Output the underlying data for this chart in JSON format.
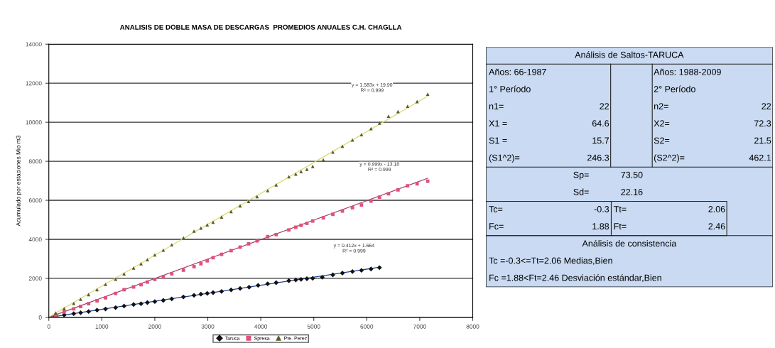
{
  "chart_data": [
    {
      "type": "scatter",
      "title": "ANALISIS DE DOBLE MASA DE DESCARGAS  PROMEDIOS ANUALES C.H. CHAGLLA",
      "ylabel": "Acumulado por estaciones Mio m3",
      "xlim": [
        0,
        8000
      ],
      "xticks": [
        0,
        1000,
        2000,
        3000,
        4000,
        5000,
        6000,
        7000,
        8000
      ],
      "ylim": [
        0,
        14000
      ],
      "yticks": [
        0,
        2000,
        4000,
        6000,
        8000,
        10000,
        12000,
        14000
      ],
      "grid": "y",
      "legend": "bottom",
      "series": [
        {
          "name": "Taruca",
          "color": "#111111",
          "marker": "diamond",
          "x": [
            130,
            290,
            470,
            600,
            750,
            910,
            1070,
            1260,
            1420,
            1600,
            1740,
            1860,
            2000,
            2160,
            2320,
            2540,
            2740,
            2870,
            2990,
            3100,
            3260,
            3440,
            3610,
            3780,
            3950,
            4130,
            4290,
            4530,
            4660,
            4760,
            4870,
            4980,
            5160,
            5360,
            5540,
            5730,
            5900,
            6080,
            6240
          ],
          "values": [
            60,
            120,
            190,
            240,
            300,
            370,
            430,
            500,
            580,
            660,
            700,
            760,
            810,
            870,
            950,
            1050,
            1130,
            1190,
            1230,
            1270,
            1330,
            1410,
            1480,
            1550,
            1640,
            1720,
            1780,
            1880,
            1920,
            1950,
            1980,
            2000,
            2060,
            2180,
            2270,
            2350,
            2410,
            2480,
            2550
          ]
        },
        {
          "name": "Spresa",
          "color": "#e0507a",
          "marker": "square",
          "x": [
            130,
            290,
            470,
            600,
            750,
            910,
            1070,
            1260,
            1420,
            1600,
            1740,
            1860,
            2000,
            2160,
            2320,
            2540,
            2740,
            2870,
            2990,
            3100,
            3260,
            3440,
            3610,
            3770,
            3930,
            4130,
            4290,
            4530,
            4660,
            4760,
            4870,
            4980,
            5180,
            5360,
            5540,
            5730,
            5900,
            6080,
            6240,
            6410,
            6590,
            6770,
            6950,
            7150
          ],
          "values": [
            120,
            270,
            440,
            560,
            700,
            850,
            1000,
            1230,
            1420,
            1560,
            1680,
            1810,
            1950,
            2080,
            2230,
            2420,
            2600,
            2750,
            2900,
            3060,
            3230,
            3420,
            3600,
            3770,
            3920,
            4140,
            4240,
            4480,
            4620,
            4720,
            4820,
            4940,
            5100,
            5280,
            5450,
            5620,
            5760,
            5960,
            6160,
            6330,
            6530,
            6740,
            6840,
            6980
          ]
        },
        {
          "name": "Pte. Perez",
          "color": "#5a5a2a",
          "marker": "triangle",
          "x": [
            130,
            290,
            470,
            600,
            750,
            910,
            1070,
            1260,
            1420,
            1600,
            1740,
            1860,
            2000,
            2160,
            2320,
            2540,
            2740,
            2870,
            2990,
            3100,
            3260,
            3440,
            3610,
            3770,
            3930,
            4130,
            4290,
            4530,
            4660,
            4760,
            4870,
            4980,
            5180,
            5360,
            5540,
            5730,
            5900,
            6080,
            6240,
            6410,
            6590,
            6770,
            6950,
            7150
          ],
          "values": [
            230,
            450,
            720,
            930,
            1170,
            1420,
            1690,
            1960,
            2230,
            2530,
            2750,
            2960,
            3200,
            3450,
            3720,
            4080,
            4420,
            4580,
            4740,
            4880,
            5140,
            5420,
            5720,
            5940,
            6190,
            6500,
            6790,
            7210,
            7340,
            7470,
            7590,
            7740,
            8070,
            8470,
            8770,
            9090,
            9360,
            9670,
            9960,
            10310,
            10550,
            10820,
            11060,
            11440
          ]
        },
        {
          "type": "line",
          "color": "#1f3f8f",
          "marker": "none",
          "x": [
            0,
            6240
          ],
          "values": [
            0,
            2570
          ]
        },
        {
          "type": "line",
          "color": "#a04060",
          "marker": "none",
          "x": [
            0,
            7150
          ],
          "values": [
            0,
            7130
          ]
        },
        {
          "type": "line",
          "color": "#d8d870",
          "marker": "none",
          "x": [
            0,
            7150
          ],
          "values": [
            20,
            11340
          ]
        }
      ],
      "annotations": [
        "y = 1.583x + 19.90\nR² = 0.999",
        "y = 0.999x - 13.18\nR² = 0.999",
        "y = 0.412x + 1.664\nR² = 0.999"
      ]
    },
    {
      "type": "other",
      "title": "Análisis de Saltos-TARUCA",
      "annotations": [
        "Años: 66-1987",
        "Años: 1988-2009",
        "1° Período",
        "2° Período",
        "n1=",
        "22",
        "n2=",
        "22",
        "X1 =",
        "64.6",
        "X2=",
        "72.3",
        "S1 =",
        "15.7",
        "S2=",
        "21.5",
        "(S1^2)=",
        "246.3",
        "(S2^2)=",
        "462.1",
        "Sp=",
        "73.50",
        "Sd=",
        "22.16",
        "Tc=",
        "-0.3",
        "Tt=",
        "2.06",
        "Fc=",
        "1.88",
        "Ft=",
        "2.46",
        "Análisis de consistencia",
        "Tc =-0.3<=Tt=2.06 Medias,Bien",
        "Fc =1.88<Ft=2.46 Desviación estándar,Bien"
      ]
    }
  ]
}
